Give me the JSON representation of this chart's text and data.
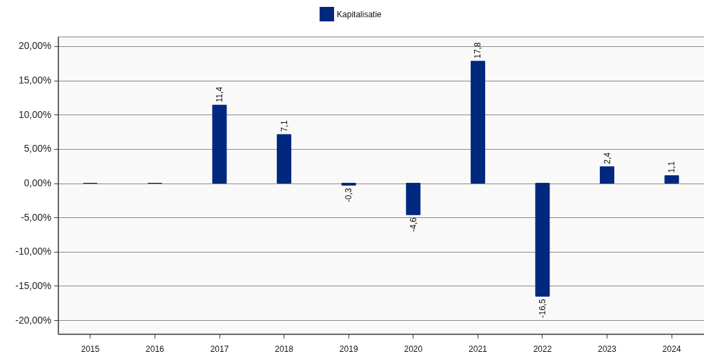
{
  "chart_data": {
    "type": "bar",
    "categories": [
      "2015",
      "2016",
      "2017",
      "2018",
      "2019",
      "2020",
      "2021",
      "2022",
      "2023",
      "2024"
    ],
    "series": [
      {
        "name": "Kapitalisatie",
        "color": "#00287f",
        "values": [
          0,
          0,
          11.4,
          7.1,
          -0.3,
          -4.6,
          17.8,
          -16.5,
          2.4,
          1.1
        ],
        "value_labels": [
          null,
          null,
          "11,4",
          "7,1",
          "-0,3",
          "-4,6",
          "17,8",
          "-16,5",
          "2,4",
          "1,1"
        ]
      }
    ],
    "ylim": [
      -22,
      21.4
    ],
    "yticks": [
      {
        "value": -20,
        "label": "-20,00%"
      },
      {
        "value": -15,
        "label": "-15,00%"
      },
      {
        "value": -10,
        "label": "-10,00%"
      },
      {
        "value": -5,
        "label": "-5,00%"
      },
      {
        "value": 0,
        "label": "0,00%"
      },
      {
        "value": 5,
        "label": "5,00%"
      },
      {
        "value": 10,
        "label": "10,00%"
      },
      {
        "value": 15,
        "label": "15,00%"
      },
      {
        "value": 20,
        "label": "20,00%"
      }
    ],
    "grid": "y",
    "legend": "top"
  }
}
